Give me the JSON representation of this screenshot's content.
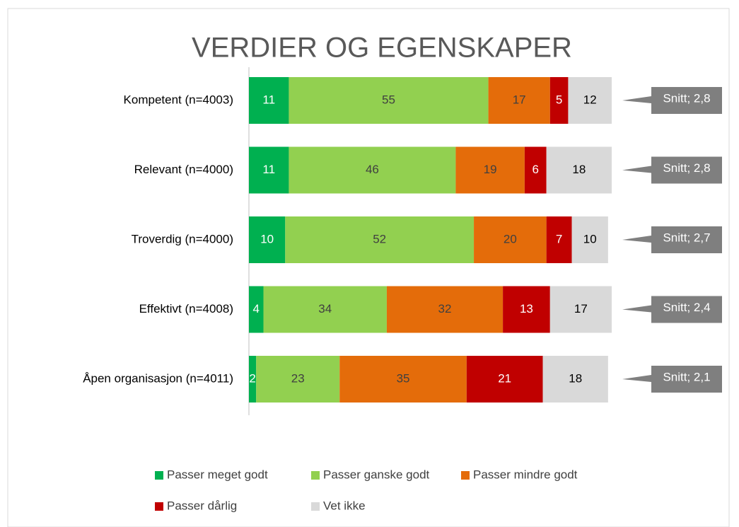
{
  "chart_data": {
    "type": "stacked_barh",
    "title": "VERDIER OG EGENSKAPER",
    "categories": [
      "Kompetent (n=4003)",
      "Relevant (n=4000)",
      "Troverdig (n=4000)",
      "Effektivt (n=4008)",
      "Åpen organisasjon (n=4011)"
    ],
    "series": [
      {
        "name": "Passer meget godt",
        "color": "#00b050",
        "values": [
          11,
          11,
          10,
          4,
          2
        ]
      },
      {
        "name": "Passer ganske godt",
        "color": "#92d050",
        "values": [
          55,
          46,
          52,
          34,
          23
        ]
      },
      {
        "name": "Passer mindre godt",
        "color": "#e46c0a",
        "values": [
          17,
          19,
          20,
          32,
          35
        ]
      },
      {
        "name": "Passer dårlig",
        "color": "#c00000",
        "values": [
          5,
          6,
          7,
          13,
          21
        ]
      },
      {
        "name": "Vet ikke",
        "color": "#d9d9d9",
        "values": [
          12,
          18,
          10,
          17,
          18
        ]
      }
    ],
    "callouts": [
      "Snitt; 2,8",
      "Snitt; 2,8",
      "Snitt; 2,7",
      "Snitt; 2,4",
      "Snitt; 2,1"
    ],
    "xlim": [
      0,
      100
    ],
    "legend": "bottom"
  }
}
